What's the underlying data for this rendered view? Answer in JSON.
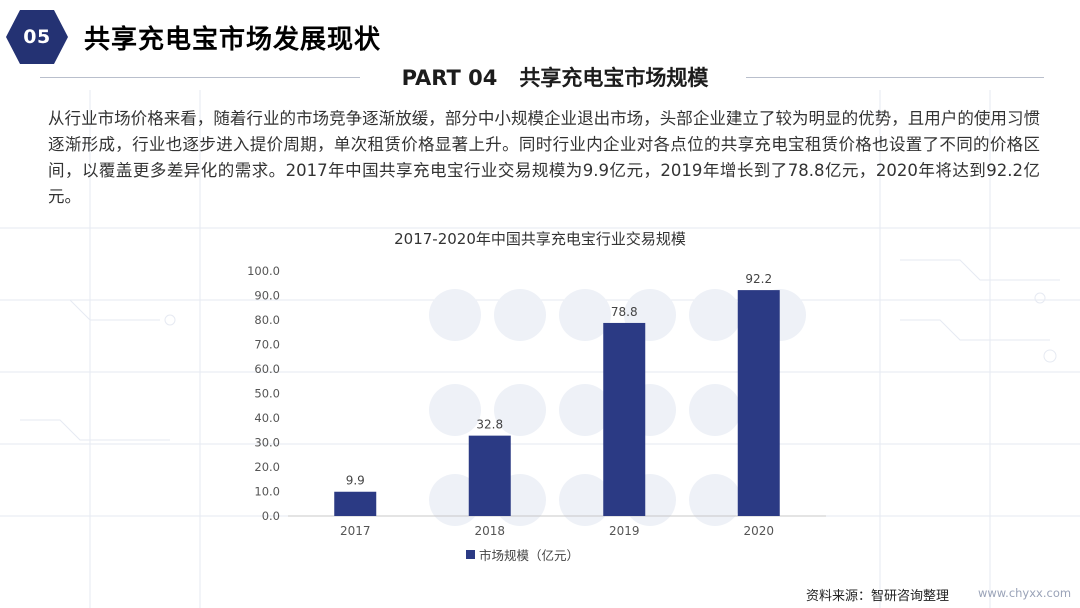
{
  "header": {
    "section_number": "05",
    "title": "共享充电宝市场发展现状"
  },
  "part": {
    "tag": "PART 04",
    "title": "共享充电宝市场规模"
  },
  "body_text": "从行业市场价格来看，随着行业的市场竞争逐渐放缓，部分中小规模企业退出市场，头部企业建立了较为明显的优势，且用户的使用习惯逐渐形成，行业也逐步进入提价周期，单次租赁价格显著上升。同时行业内企业对各点位的共享充电宝租赁价格也设置了不同的价格区间，以覆盖更多差异化的需求。2017年中国共享充电宝行业交易规模为9.9亿元，2019年增长到了78.8亿元，2020年将达到92.2亿元。",
  "chart_data": {
    "type": "bar",
    "title": "2017-2020年中国共享充电宝行业交易规模",
    "categories": [
      "2017",
      "2018",
      "2019",
      "2020"
    ],
    "series": [
      {
        "name": "市场规模（亿元）",
        "values": [
          9.9,
          32.8,
          78.8,
          92.2
        ],
        "color": "#2b3a84"
      }
    ],
    "value_labels": [
      "9.9",
      "32.8",
      "78.8",
      "92.2"
    ],
    "y_ticks": [
      "0.0",
      "10.0",
      "20.0",
      "30.0",
      "40.0",
      "50.0",
      "60.0",
      "70.0",
      "80.0",
      "90.0",
      "100.0"
    ],
    "ylim": [
      0,
      100
    ],
    "xlabel": "",
    "ylabel": "",
    "grid": false,
    "legend": "bottom"
  },
  "footer": {
    "source": "资料来源：智研咨询整理",
    "watermark": "www.chyxx.com"
  },
  "colors": {
    "accent": "#2b3a84",
    "badge": "#243273"
  }
}
